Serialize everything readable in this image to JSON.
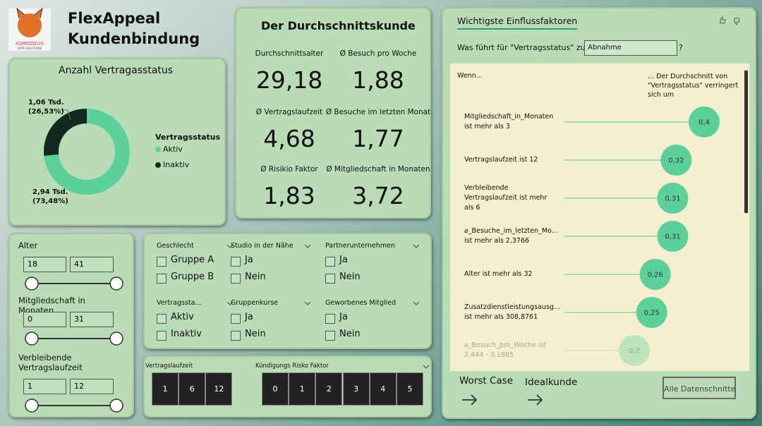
{
  "header": {
    "logo_text": "ASMODEUS",
    "logo_subtext": "DATA SOLUTIONS",
    "title": [
      "FlexAppeal",
      "Kundenbindung"
    ]
  },
  "donut": {
    "title": "Anzahl Vertragasstatus",
    "legend_title": "Vertragsstatus",
    "segments": [
      {
        "name": "Aktiv",
        "color": "#5bd09b",
        "percent": 73.48,
        "label": "2,94 Tsd.",
        "percent_label": "(73,48%)"
      },
      {
        "name": "Inaktiv",
        "color": "#11291e",
        "percent": 26.53,
        "label": "1,06 Tsd.",
        "percent_label": "(26,53%)"
      }
    ]
  },
  "kpis": {
    "title": "Der Durchschnittskunde",
    "items": [
      {
        "label": "Durchschnittsalter",
        "value": "29,18"
      },
      {
        "label": "Ø Besuch pro Woche",
        "value": "1,88"
      },
      {
        "label": "Ø Vertragslaufzeit",
        "value": "4,68"
      },
      {
        "label": "Ø Besuche im letzten Monat",
        "value": "1,77"
      },
      {
        "label": "Ø Risikio Faktor",
        "value": "1,83"
      },
      {
        "label": "Ø Mitgliedschaft in Monaten",
        "value": "3,72"
      }
    ]
  },
  "range_slicers": [
    {
      "title": "Alter",
      "min": "18",
      "max": "41"
    },
    {
      "title": "Mitgliedschaft in Monaten",
      "min": "0",
      "max": "31"
    },
    {
      "title": "Verbleibende Vertragslaufzeit",
      "min": "1",
      "max": "12"
    }
  ],
  "checkbox_slicers": [
    {
      "title": "Geschlecht",
      "options": [
        "Gruppe A",
        "Gruppe B"
      ]
    },
    {
      "title": "Studio in der Nähe",
      "options": [
        "Ja",
        "Nein"
      ]
    },
    {
      "title": "Partnerunternehmen",
      "options": [
        "Ja",
        "Nein"
      ]
    },
    {
      "title": "Vertragssta...",
      "options": [
        "Aktiv",
        "Inaktiv"
      ]
    },
    {
      "title": "Gruppenkurse",
      "options": [
        "Ja",
        "Nein"
      ]
    },
    {
      "title": "Geworbenes Mitglied",
      "options": [
        "Ja",
        "Nein"
      ]
    }
  ],
  "tile_slicers": [
    {
      "title": "Vertragslaufzeit",
      "options": [
        "1",
        "6",
        "12"
      ]
    },
    {
      "title": "Kündigungs Risko Faktor",
      "options": [
        "0",
        "1",
        "2",
        "3",
        "4",
        "5"
      ]
    }
  ],
  "influencers": {
    "title": "Wichtigste Einflussfaktoren",
    "question": "Was führt für \"Vertragsstatus\" zur",
    "dropdown": "Abnahme",
    "help": "?",
    "col_left": "Wenn...",
    "col_right": "... Der Durchschnitt von \"Vertragsstatus\" verringert sich um",
    "rows": [
      {
        "label": "Mitgliedschaft_in_Monaten ist mehr als 3",
        "value": 0.4,
        "value_label": "0,4"
      },
      {
        "label": "Vertragslaufzeit ist 12",
        "value": 0.32,
        "value_label": "0,32"
      },
      {
        "label": "Verbleibende Vertragslaufzeit ist mehr als 6",
        "value": 0.31,
        "value_label": "0,31"
      },
      {
        "label": "⌀_Besuche_im_letzten_Mo... ist mehr als 2,3766",
        "value": 0.31,
        "value_label": "0,31"
      },
      {
        "label": "Alter ist mehr als 32",
        "value": 0.26,
        "value_label": "0,26"
      },
      {
        "label": "Zusatzdienstleistungsausg... ist mehr als 308,8761",
        "value": 0.25,
        "value_label": "0,25"
      },
      {
        "label": "⌀_Besuch_pro_Woche ist 2,444 - 3,1885",
        "value": 0.2,
        "value_label": "0,2"
      }
    ]
  },
  "buttons": {
    "worst_case": "Worst Case",
    "ideal": "Idealkunde",
    "clear": "Alle Datenschnitte"
  }
}
